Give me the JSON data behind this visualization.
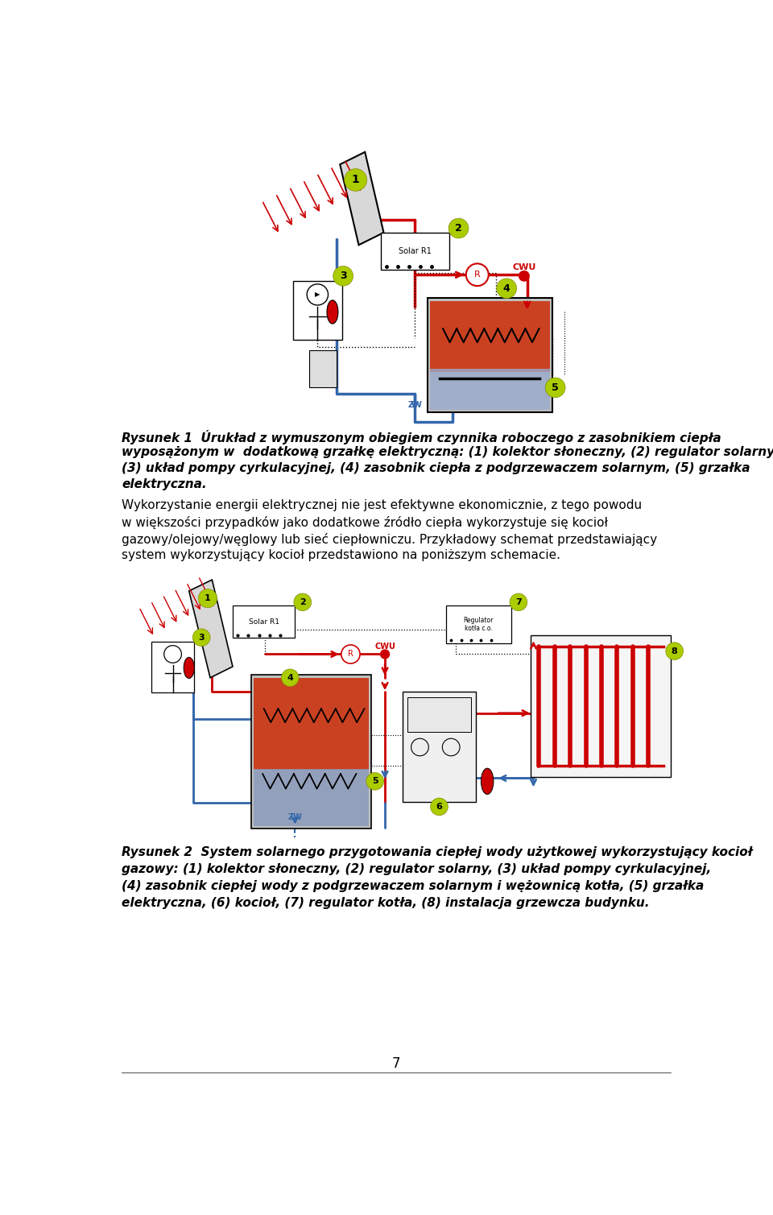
{
  "background_color": "#ffffff",
  "page_width": 9.6,
  "page_height": 15.09,
  "caption1_text": "Rysunek 1  Úrukład z wymuszonym obiegiem czynnika roboczego z zasobnikiem ciepła wyposążonym w  dodatkową grzałkę elektryczną: (1) kolektor słoneczny, (2) regulator solarny, (3) układ pompy cyrkulacyjnej, (4) zasobnik ciepła z podgrzewaczem solarnym, (5) grzałka elektryczna.",
  "paragraph_text": "Wykorzystanie energii elektrycznej nie jest efektywne ekonomicznie, z tego powodu\nw większości przypadków jako dodatkowe źródło ciepła wykorzystuje się kocioł\ngazowy/olejowy/węglowy lub sieć ciepłowniczu. Przykładowy schemat przedstawiający\nsystem wykorzystujący kocioł przedstawiono na poniższym schemacie.",
  "caption2_text": "Rysunek 2  System solarnego przygotowania ciepłej wody użytkowej wykorzystujący kocioł\ngazowy: (1) kolektor słoneczny, (2) regulator solarny, (3) układ pompy cyrkulacyjnej,\n(4) zasobnik ciepłej wody z podgrzewaczem solarnym i wężownicą kotła, (5) grzałka\nelektryczna, (6) kocioł, (7) regulator kotła, (8) instalacja grzewcza budynku.",
  "page_number": "7",
  "red": "#cc0000",
  "blue": "#3366aa",
  "yellow_circle": "#aacc00",
  "black": "#000000"
}
